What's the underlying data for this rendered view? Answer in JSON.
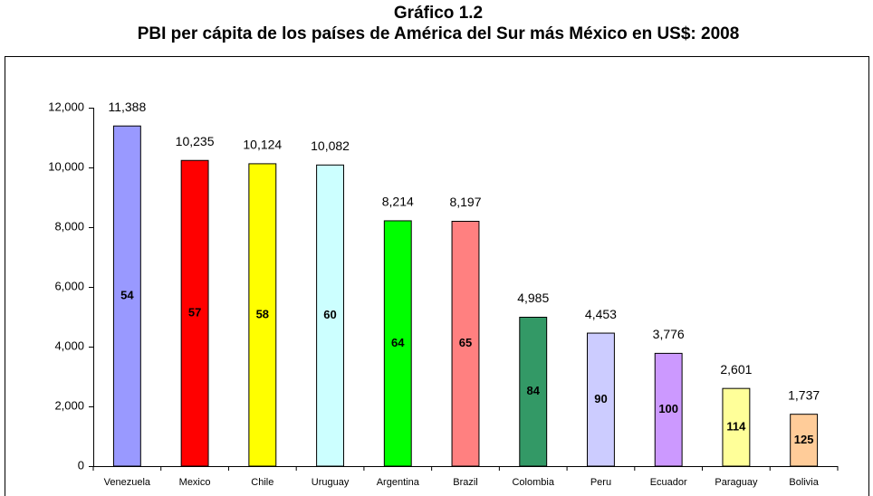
{
  "chart_data": {
    "type": "bar",
    "title": "Gráfico 1.2",
    "subtitle": "PBI per cápita de los países de América del Sur más México en US$: 2008",
    "categories": [
      "Venezuela",
      "Mexico",
      "Chile",
      "Uruguay",
      "Argentina",
      "Brazil",
      "Colombia",
      "Peru",
      "Ecuador",
      "Paraguay",
      "Bolivia"
    ],
    "values": [
      11388,
      10235,
      10124,
      10082,
      8214,
      8197,
      4985,
      4453,
      3776,
      2601,
      1737
    ],
    "value_labels": [
      "11,388",
      "10,235",
      "10,124",
      "10,082",
      "8,214",
      "8,197",
      "4,985",
      "4,453",
      "3,776",
      "2,601",
      "1,737"
    ],
    "inner_labels": [
      "54",
      "57",
      "58",
      "60",
      "64",
      "65",
      "84",
      "90",
      "100",
      "114",
      "125"
    ],
    "colors": [
      "#9999ff",
      "#ff0000",
      "#ffff00",
      "#ccffff",
      "#00ff00",
      "#ff8080",
      "#339966",
      "#ccccff",
      "#cc99ff",
      "#ffff99",
      "#ffcc99"
    ],
    "ylim": [
      0,
      12000
    ],
    "yticks": [
      0,
      {
        "value": 2000,
        "label": "2,000"
      },
      {
        "value": 4000,
        "label": "4,000"
      },
      {
        "value": 6000,
        "label": "6,000"
      },
      {
        "value": 8000,
        "label": "8,000"
      },
      {
        "value": 10000,
        "label": "10,000"
      },
      {
        "value": 12000,
        "label": "12,000"
      }
    ],
    "grid": false
  }
}
